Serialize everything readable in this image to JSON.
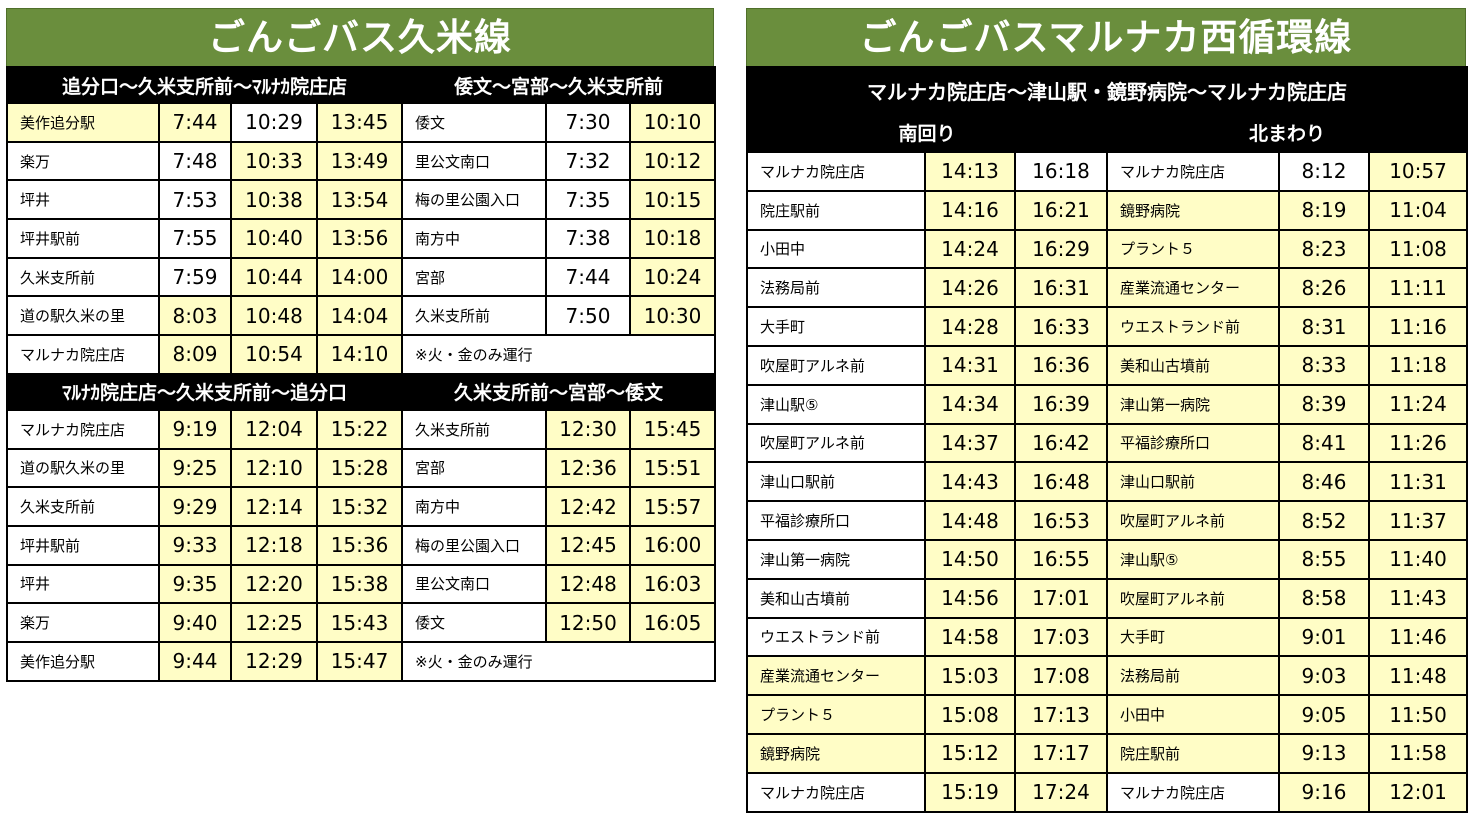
{
  "kume": {
    "title": "ごんごバス久米線",
    "block1": {
      "left_header": "追分口～久米支所前～ﾏﾙﾅｶ院庄店",
      "right_header": "倭文～宮部～久米支所前",
      "rows": [
        {
          "stop": "美作追分駅",
          "t": [
            "7:44",
            "10:29",
            "13:45"
          ],
          "stop2": "倭文",
          "t2": [
            "7:30",
            "10:10"
          ]
        },
        {
          "stop": "楽万",
          "t": [
            "7:48",
            "10:33",
            "13:49"
          ],
          "stop2": "里公文南口",
          "t2": [
            "7:32",
            "10:12"
          ]
        },
        {
          "stop": "坪井",
          "t": [
            "7:53",
            "10:38",
            "13:54"
          ],
          "stop2": "梅の里公園入口",
          "t2": [
            "7:35",
            "10:15"
          ]
        },
        {
          "stop": "坪井駅前",
          "t": [
            "7:55",
            "10:40",
            "13:56"
          ],
          "stop2": "南方中",
          "t2": [
            "7:38",
            "10:18"
          ]
        },
        {
          "stop": "久米支所前",
          "t": [
            "7:59",
            "10:44",
            "14:00"
          ],
          "stop2": "宮部",
          "t2": [
            "7:44",
            "10:24"
          ]
        },
        {
          "stop": "道の駅久米の里",
          "t": [
            "8:03",
            "10:48",
            "14:04"
          ],
          "stop2": "久米支所前",
          "t2": [
            "7:50",
            "10:30"
          ]
        },
        {
          "stop": "マルナカ院庄店",
          "t": [
            "8:09",
            "10:54",
            "14:10"
          ]
        }
      ],
      "note": "※火・金のみ運行"
    },
    "block2": {
      "left_header": "ﾏﾙﾅｶ院庄店～久米支所前～追分口",
      "right_header": "久米支所前～宮部～倭文",
      "rows": [
        {
          "stop": "マルナカ院庄店",
          "t": [
            "9:19",
            "12:04",
            "15:22"
          ],
          "stop2": "久米支所前",
          "t2": [
            "12:30",
            "15:45"
          ]
        },
        {
          "stop": "道の駅久米の里",
          "t": [
            "9:25",
            "12:10",
            "15:28"
          ],
          "stop2": "宮部",
          "t2": [
            "12:36",
            "15:51"
          ]
        },
        {
          "stop": "久米支所前",
          "t": [
            "9:29",
            "12:14",
            "15:32"
          ],
          "stop2": "南方中",
          "t2": [
            "12:42",
            "15:57"
          ]
        },
        {
          "stop": "坪井駅前",
          "t": [
            "9:33",
            "12:18",
            "15:36"
          ],
          "stop2": "梅の里公園入口",
          "t2": [
            "12:45",
            "16:00"
          ]
        },
        {
          "stop": "坪井",
          "t": [
            "9:35",
            "12:20",
            "15:38"
          ],
          "stop2": "里公文南口",
          "t2": [
            "12:48",
            "16:03"
          ]
        },
        {
          "stop": "楽万",
          "t": [
            "9:40",
            "12:25",
            "15:43"
          ],
          "stop2": "倭文",
          "t2": [
            "12:50",
            "16:05"
          ]
        },
        {
          "stop": "美作追分駅",
          "t": [
            "9:44",
            "12:29",
            "15:47"
          ]
        }
      ],
      "note": "※火・金のみ運行"
    }
  },
  "marunaka": {
    "title": "ごんごバスマルナカ西循環線",
    "route": "マルナカ院庄店～津山駅・鏡野病院～マルナカ院庄店",
    "south_header": "南回り",
    "north_header": "北まわり",
    "rows": [
      {
        "s": "マルナカ院庄店",
        "st": [
          "14:13",
          "16:18"
        ],
        "n": "マルナカ院庄店",
        "nt": [
          "8:12",
          "10:57"
        ]
      },
      {
        "s": "院庄駅前",
        "st": [
          "14:16",
          "16:21"
        ],
        "n": "鏡野病院",
        "nt": [
          "8:19",
          "11:04"
        ]
      },
      {
        "s": "小田中",
        "st": [
          "14:24",
          "16:29"
        ],
        "n": "プラント５",
        "nt": [
          "8:23",
          "11:08"
        ]
      },
      {
        "s": "法務局前",
        "st": [
          "14:26",
          "16:31"
        ],
        "n": "産業流通センター",
        "nt": [
          "8:26",
          "11:11"
        ]
      },
      {
        "s": "大手町",
        "st": [
          "14:28",
          "16:33"
        ],
        "n": "ウエストランド前",
        "nt": [
          "8:31",
          "11:16"
        ]
      },
      {
        "s": "吹屋町アルネ前",
        "st": [
          "14:31",
          "16:36"
        ],
        "n": "美和山古墳前",
        "nt": [
          "8:33",
          "11:18"
        ]
      },
      {
        "s": "津山駅⑤",
        "st": [
          "14:34",
          "16:39"
        ],
        "n": "津山第一病院",
        "nt": [
          "8:39",
          "11:24"
        ]
      },
      {
        "s": "吹屋町アルネ前",
        "st": [
          "14:37",
          "16:42"
        ],
        "n": "平福診療所口",
        "nt": [
          "8:41",
          "11:26"
        ]
      },
      {
        "s": "津山口駅前",
        "st": [
          "14:43",
          "16:48"
        ],
        "n": "津山口駅前",
        "nt": [
          "8:46",
          "11:31"
        ]
      },
      {
        "s": "平福診療所口",
        "st": [
          "14:48",
          "16:53"
        ],
        "n": "吹屋町アルネ前",
        "nt": [
          "8:52",
          "11:37"
        ]
      },
      {
        "s": "津山第一病院",
        "st": [
          "14:50",
          "16:55"
        ],
        "n": "津山駅⑤",
        "nt": [
          "8:55",
          "11:40"
        ]
      },
      {
        "s": "美和山古墳前",
        "st": [
          "14:56",
          "17:01"
        ],
        "n": "吹屋町アルネ前",
        "nt": [
          "8:58",
          "11:43"
        ]
      },
      {
        "s": "ウエストランド前",
        "st": [
          "14:58",
          "17:03"
        ],
        "n": "大手町",
        "nt": [
          "9:01",
          "11:46"
        ]
      },
      {
        "s": "産業流通センター",
        "st": [
          "15:03",
          "17:08"
        ],
        "n": "法務局前",
        "nt": [
          "9:03",
          "11:48"
        ]
      },
      {
        "s": "プラント５",
        "st": [
          "15:08",
          "17:13"
        ],
        "n": "小田中",
        "nt": [
          "9:05",
          "11:50"
        ]
      },
      {
        "s": "鏡野病院",
        "st": [
          "15:12",
          "17:17"
        ],
        "n": "院庄駅前",
        "nt": [
          "9:13",
          "11:58"
        ]
      },
      {
        "s": "マルナカ院庄店",
        "st": [
          "15:19",
          "17:24"
        ],
        "n": "マルナカ院庄店",
        "nt": [
          "9:16",
          "12:01"
        ]
      }
    ]
  }
}
